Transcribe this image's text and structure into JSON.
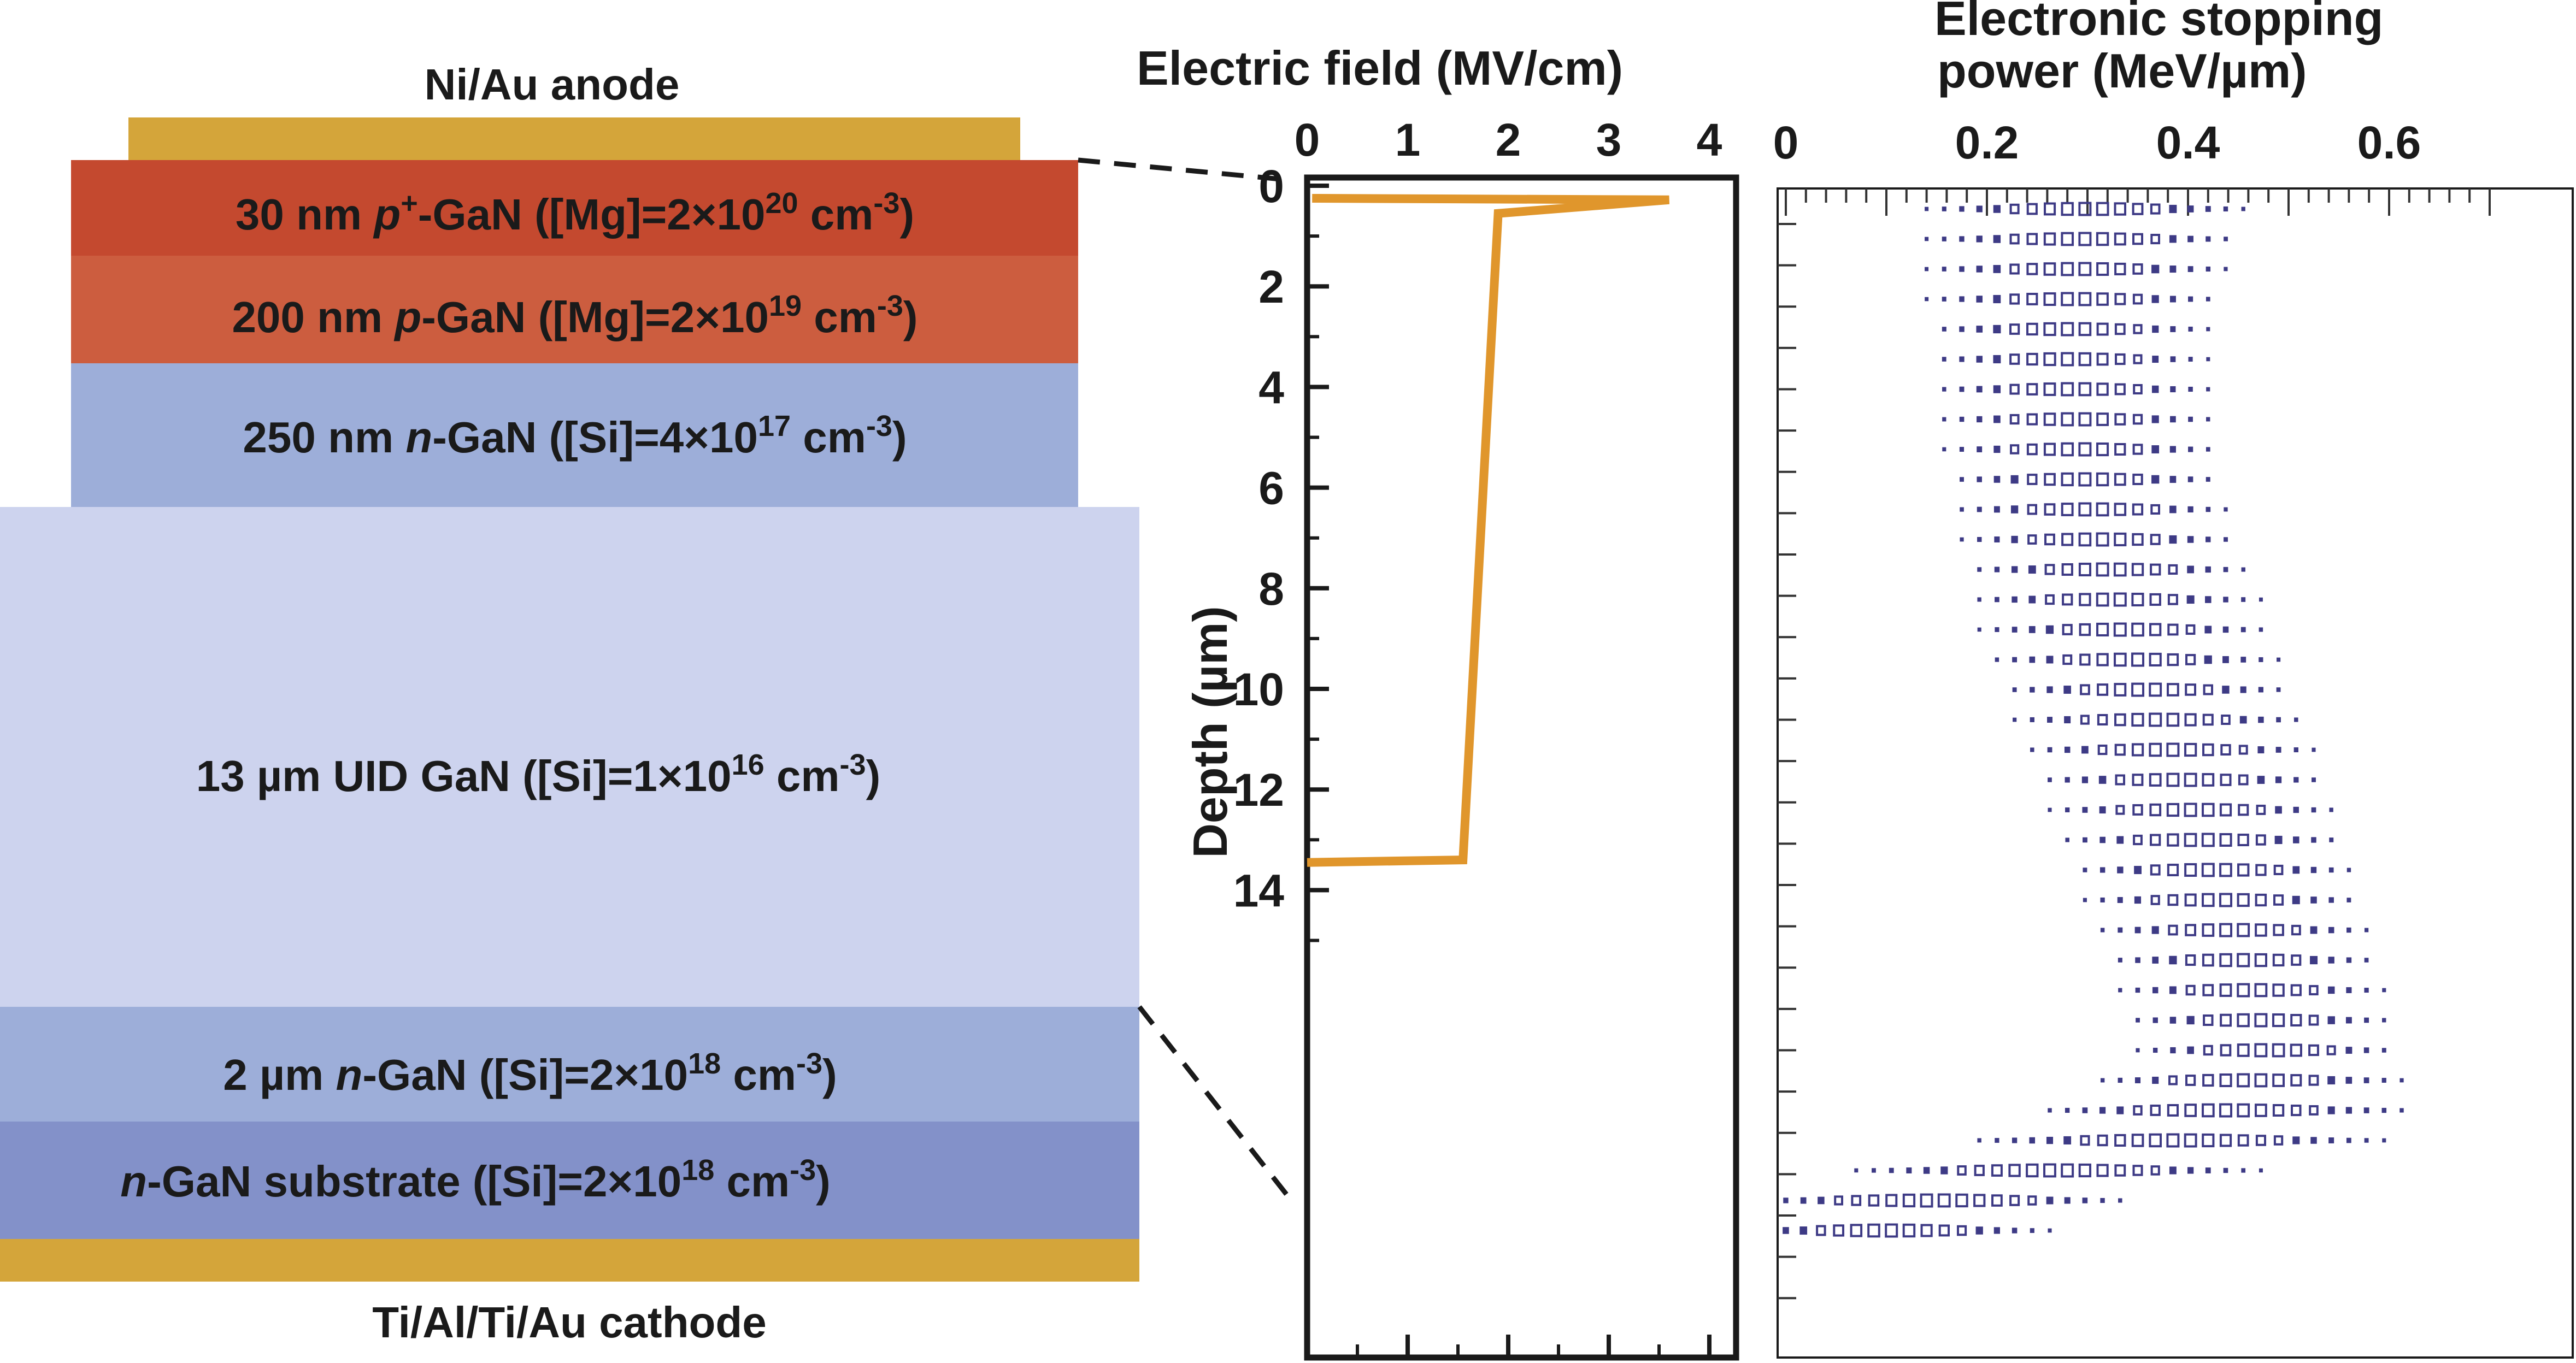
{
  "stack": {
    "anode_label": "Ni/Au anode",
    "cathode_label": "Ti/Al/Ti/Au cathode",
    "metal_color": "#d4a53a",
    "layers": [
      {
        "id": "p-plus-gan",
        "pre": "30 nm ",
        "italic": "p",
        "sup1": "+",
        "post": "-GaN ([Mg]=2×10",
        "exp": "20",
        "tail": " cm",
        "tail_exp": "-3",
        "close": ")",
        "color": "#c4492f"
      },
      {
        "id": "p-gan",
        "pre": "200 nm ",
        "italic": "p",
        "sup1": "",
        "post": "-GaN ([Mg]=2×10",
        "exp": "19",
        "tail": " cm",
        "tail_exp": "-3",
        "close": ")",
        "color": "#cc5d3f"
      },
      {
        "id": "n-gan-250",
        "pre": "250 nm ",
        "italic": "n",
        "sup1": "",
        "post": "-GaN ([Si]=4×10",
        "exp": "17",
        "tail": " cm",
        "tail_exp": "-3",
        "close": ")",
        "color": "#9daed9"
      },
      {
        "id": "uid-gan",
        "pre": "13 µm UID GaN ([Si]=1×10",
        "italic": "",
        "sup1": "",
        "post": "",
        "exp": "16",
        "tail": " cm",
        "tail_exp": "-3",
        "close": ")",
        "color": "#cdd3ee"
      },
      {
        "id": "n-gan-2um",
        "pre": "2 µm ",
        "italic": "n",
        "sup1": "",
        "post": "-GaN ([Si]=2×10",
        "exp": "18",
        "tail": " cm",
        "tail_exp": "-3",
        "close": ")",
        "color": "#9daed9"
      },
      {
        "id": "n-gan-substrate",
        "pre": "",
        "italic": "n",
        "sup1": "",
        "post": "-GaN substrate ([Si]=2×10",
        "exp": "18",
        "tail": " cm",
        "tail_exp": "-3",
        "close": ")",
        "color": "#8391c9"
      }
    ]
  },
  "chart_data": [
    {
      "type": "line",
      "title": "",
      "xlabel": "Electric field (MV/cm)",
      "ylabel": "Depth (µm)",
      "xlim": [
        0,
        4.5
      ],
      "ylim": [
        15.4,
        0
      ],
      "x_axis_position": "top",
      "x_ticks": [
        0,
        1,
        2,
        3,
        4
      ],
      "y_ticks": [
        0,
        2,
        4,
        6,
        8,
        10,
        12,
        14
      ],
      "line_color": "#e0962c",
      "series": [
        {
          "points": [
            {
              "x": 0.05,
              "y": 0.25
            },
            {
              "x": 3.6,
              "y": 0.28
            },
            {
              "x": 1.9,
              "y": 0.55
            },
            {
              "x": 1.55,
              "y": 13.4
            },
            {
              "x": 0.0,
              "y": 13.45
            }
          ]
        }
      ]
    },
    {
      "type": "heatmap",
      "title": "",
      "xlabel": "Electronic stopping power (MeV/µm)",
      "ylabel": "",
      "xlim": [
        0,
        0.72
      ],
      "ylim": [
        15.4,
        0
      ],
      "x_axis_position": "top",
      "x_ticks": [
        0,
        0.2,
        0.4,
        0.6
      ],
      "x_tick_labels": [
        "0",
        "0.2",
        "0.4",
        "0.6"
      ],
      "marker_color": "#3d3a85",
      "note_shape": "hollow squares sized by density",
      "distribution_ridge": [
        {
          "depth": 0.2,
          "center": 0.3,
          "spread": 0.1
        },
        {
          "depth": 2.0,
          "center": 0.28,
          "spread": 0.085
        },
        {
          "depth": 4.0,
          "center": 0.3,
          "spread": 0.085
        },
        {
          "depth": 6.0,
          "center": 0.34,
          "spread": 0.09
        },
        {
          "depth": 8.0,
          "center": 0.4,
          "spread": 0.09
        },
        {
          "depth": 10.0,
          "center": 0.45,
          "spread": 0.085
        },
        {
          "depth": 11.5,
          "center": 0.48,
          "spread": 0.08
        },
        {
          "depth": 12.5,
          "center": 0.42,
          "spread": 0.13
        },
        {
          "depth": 13.4,
          "center": 0.15,
          "spread": 0.12
        },
        {
          "depth": 14.0,
          "center": 0.08,
          "spread": 0.09
        }
      ]
    }
  ]
}
